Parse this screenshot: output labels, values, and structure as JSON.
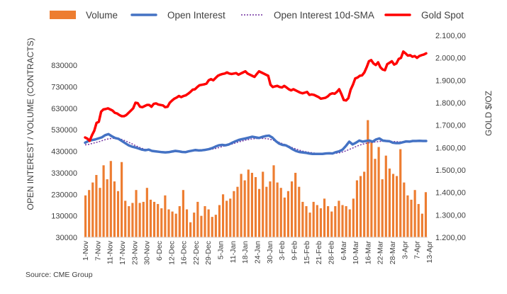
{
  "chart_data": {
    "type": "bar",
    "source": "Source: CME Group",
    "ylabel_left": "OPEN INTEREST / VOLUME (CONTRACTS)",
    "ylabel_right": "GOLD $/OZ",
    "ylim_left": [
      30000,
      880000
    ],
    "ylim_right": [
      1200,
      2100
    ],
    "left_ticks": [
      "30000",
      "130000",
      "230000",
      "330000",
      "430000",
      "530000",
      "630000",
      "730000",
      "830000"
    ],
    "right_ticks": [
      "1.200,00",
      "1.300,00",
      "1.400,00",
      "1.500,00",
      "1.600,00",
      "1.700,00",
      "1.800,00",
      "1.900,00",
      "2.000,00",
      "2.100,00"
    ],
    "x_labels": [
      "1-Nov",
      "7-Nov",
      "11-Nov",
      "17-Nov",
      "23-Nov",
      "30-Nov",
      "6-Dec",
      "12-Dec",
      "16-Dec",
      "22-Dec",
      "29-Dec",
      "5-Jan",
      "11-Jan",
      "18-Jan",
      "24-Jan",
      "30-Jan",
      "3-Feb",
      "9-Feb",
      "15-Feb",
      "21-Feb",
      "28-Feb",
      "6-Mar",
      "10-Mar",
      "16-Mar",
      "22-Mar",
      "28-Mar",
      "3-Apr",
      "7-Apr",
      "13-Apr"
    ],
    "legend": [
      {
        "name": "Volume",
        "color": "#ED7D31",
        "kind": "bar"
      },
      {
        "name": "Open Interest",
        "color": "#4472C4",
        "kind": "line"
      },
      {
        "name": "Open Interest 10d-SMA",
        "color": "#7030A0",
        "kind": "dotted"
      },
      {
        "name": "Gold Spot",
        "color": "#FF0000",
        "kind": "line"
      }
    ],
    "series": [
      {
        "name": "Volume",
        "axis": "left",
        "values": [
          225000,
          250000,
          285000,
          320000,
          260000,
          365000,
          300000,
          385000,
          290000,
          245000,
          380000,
          200000,
          175000,
          190000,
          250000,
          190000,
          195000,
          260000,
          205000,
          195000,
          185000,
          165000,
          225000,
          160000,
          150000,
          140000,
          175000,
          250000,
          160000,
          100000,
          145000,
          195000,
          130000,
          175000,
          160000,
          125000,
          135000,
          180000,
          230000,
          200000,
          210000,
          245000,
          265000,
          325000,
          295000,
          345000,
          330000,
          310000,
          255000,
          335000,
          265000,
          290000,
          365000,
          285000,
          260000,
          215000,
          245000,
          290000,
          330000,
          265000,
          195000,
          175000,
          145000,
          195000,
          180000,
          165000,
          210000,
          175000,
          150000,
          175000,
          200000,
          180000,
          175000,
          160000,
          210000,
          295000,
          315000,
          335000,
          575000,
          480000,
          395000,
          450000,
          300000,
          410000,
          350000,
          325000,
          315000,
          440000,
          285000,
          225000,
          205000,
          250000,
          185000,
          140000,
          240000
        ]
      },
      {
        "name": "Open Interest",
        "axis": "left",
        "values": [
          470000,
          478000,
          482000,
          485000,
          490000,
          495000,
          505000,
          510000,
          500000,
          492000,
          488000,
          478000,
          468000,
          458000,
          452000,
          448000,
          443000,
          438000,
          435000,
          438000,
          432000,
          430000,
          428000,
          426000,
          425000,
          426000,
          429000,
          432000,
          430000,
          427000,
          426000,
          430000,
          433000,
          436000,
          434000,
          435000,
          437000,
          440000,
          445000,
          452000,
          458000,
          460000,
          458000,
          462000,
          470000,
          477000,
          483000,
          487000,
          490000,
          494000,
          498000,
          495000,
          492000,
          497000,
          501000,
          503000,
          494000,
          478000,
          466000,
          460000,
          458000,
          450000,
          440000,
          432000,
          427000,
          425000,
          423000,
          420000,
          418000,
          418000,
          418000,
          418000,
          420000,
          421000,
          420000,
          426000,
          430000,
          438000,
          455000,
          475000,
          462000,
          470000,
          480000,
          475000,
          478000,
          480000,
          475000,
          485000,
          490000,
          480000,
          478000,
          477000,
          470000,
          468000,
          468000,
          472000,
          476000,
          475000,
          478000,
          478000,
          479000,
          478000,
          478000
        ]
      },
      {
        "name": "Open Interest 10d-SMA",
        "axis": "left",
        "values": [
          460000,
          462000,
          466000,
          470000,
          474000,
          479000,
          484000,
          488000,
          490000,
          491000,
          489000,
          485000,
          479000,
          472000,
          465000,
          457000,
          450000,
          444000,
          439000,
          435000,
          432000,
          430000,
          429000,
          428000,
          427000,
          427000,
          427000,
          428000,
          429000,
          429000,
          429000,
          430000,
          431000,
          432000,
          433000,
          434000,
          435000,
          437000,
          440000,
          443000,
          447000,
          452000,
          456000,
          460000,
          464000,
          469000,
          474000,
          478000,
          482000,
          485000,
          488000,
          489000,
          490000,
          490000,
          489000,
          487000,
          483000,
          478000,
          472000,
          466000,
          460000,
          454000,
          447000,
          441000,
          436000,
          431000,
          428000,
          425000,
          423000,
          421000,
          420000,
          419000,
          419000,
          419000,
          420000,
          421000,
          423000,
          427000,
          432000,
          439000,
          445000,
          452000,
          458000,
          463000,
          467000,
          470000,
          472000,
          474000,
          476000,
          477000,
          477000,
          477000,
          476000,
          475000,
          474000,
          474000,
          474000,
          475000,
          476000,
          476000,
          476000,
          477000,
          477000
        ]
      },
      {
        "name": "Gold Spot",
        "axis": "right",
        "values": [
          1645,
          1640,
          1630,
          1655,
          1675,
          1710,
          1715,
          1760,
          1770,
          1772,
          1775,
          1770,
          1765,
          1755,
          1752,
          1745,
          1740,
          1740,
          1745,
          1755,
          1765,
          1775,
          1800,
          1798,
          1782,
          1780,
          1785,
          1790,
          1790,
          1782,
          1795,
          1797,
          1792,
          1790,
          1788,
          1780,
          1782,
          1800,
          1810,
          1818,
          1823,
          1830,
          1825,
          1830,
          1833,
          1840,
          1848,
          1858,
          1860,
          1870,
          1878,
          1880,
          1882,
          1885,
          1900,
          1905,
          1900,
          1910,
          1920,
          1925,
          1928,
          1930,
          1935,
          1930,
          1928,
          1930,
          1932,
          1925,
          1930,
          1935,
          1940,
          1930,
          1925,
          1920,
          1915,
          1928,
          1940,
          1935,
          1930,
          1925,
          1920,
          1880,
          1870,
          1873,
          1875,
          1870,
          1868,
          1875,
          1868,
          1860,
          1855,
          1860,
          1855,
          1850,
          1845,
          1842,
          1845,
          1848,
          1835,
          1837,
          1835,
          1830,
          1825,
          1818,
          1820,
          1822,
          1828,
          1838,
          1842,
          1840,
          1848,
          1860,
          1838,
          1812,
          1810,
          1820,
          1858,
          1880,
          1908,
          1912,
          1920,
          1922,
          1935,
          1958,
          1985,
          1990,
          1975,
          1968,
          1980,
          1958,
          1948,
          1945,
          1972,
          1978,
          1985,
          1970,
          1975,
          1995,
          2000,
          2028,
          2020,
          2010,
          2012,
          2005,
          2008,
          2000,
          2008,
          2012,
          2015,
          2020
        ]
      }
    ]
  }
}
